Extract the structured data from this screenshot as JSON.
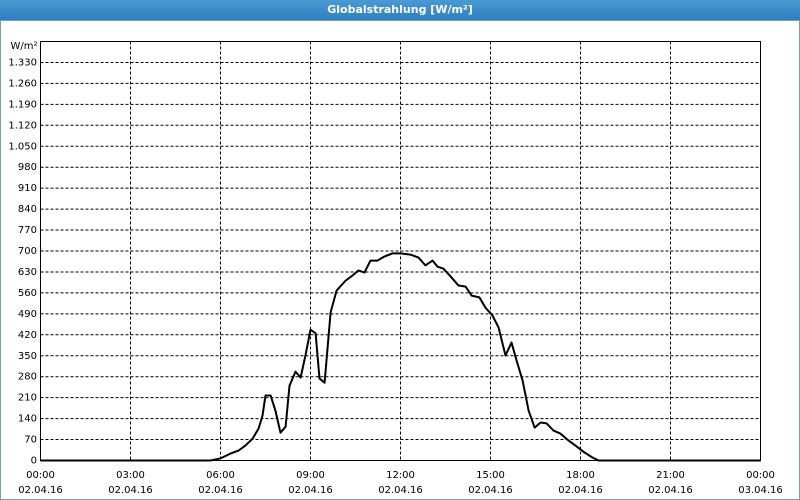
{
  "chart_data": {
    "type": "line",
    "title": "Globalstrahlung [W/m²]",
    "y_unit": "W/m²",
    "color": "#000000",
    "grid": true,
    "x": [
      0,
      5.67,
      6.0,
      6.33,
      6.6,
      6.83,
      7.07,
      7.27,
      7.4,
      7.5,
      7.67,
      7.83,
      8.0,
      8.17,
      8.3,
      8.5,
      8.67,
      8.83,
      9.0,
      9.17,
      9.3,
      9.47,
      9.67,
      9.87,
      10.17,
      10.4,
      10.6,
      10.8,
      11.0,
      11.23,
      11.47,
      11.73,
      12.0,
      12.33,
      12.6,
      12.83,
      13.07,
      13.23,
      13.43,
      13.67,
      13.93,
      14.17,
      14.37,
      14.63,
      14.83,
      15.07,
      15.27,
      15.5,
      15.7,
      15.87,
      16.07,
      16.27,
      16.47,
      16.67,
      16.87,
      17.1,
      17.33,
      17.6,
      17.87,
      18.13,
      18.4,
      18.6,
      24
    ],
    "values": [
      0,
      0,
      7,
      23,
      33,
      50,
      73,
      107,
      150,
      217,
      217,
      167,
      93,
      113,
      250,
      297,
      277,
      350,
      437,
      425,
      274,
      260,
      495,
      568,
      601,
      618,
      635,
      628,
      668,
      668,
      682,
      692,
      692,
      688,
      678,
      652,
      668,
      648,
      641,
      615,
      585,
      581,
      551,
      545,
      511,
      484,
      444,
      351,
      394,
      334,
      267,
      167,
      110,
      127,
      124,
      100,
      90,
      67,
      47,
      27,
      10,
      0,
      0
    ],
    "xlim": [
      0,
      24
    ],
    "xticks": [
      {
        "value": 0,
        "label": "00:00"
      },
      {
        "value": 3,
        "label": "03:00"
      },
      {
        "value": 6,
        "label": "06:00"
      },
      {
        "value": 9,
        "label": "09:00"
      },
      {
        "value": 12,
        "label": "12:00"
      },
      {
        "value": 15,
        "label": "15:00"
      },
      {
        "value": 18,
        "label": "18:00"
      },
      {
        "value": 21,
        "label": "21:00"
      },
      {
        "value": 24,
        "label": "00:00"
      }
    ],
    "xtick_dates": [
      "02.04.16",
      "02.04.16",
      "02.04.16",
      "02.04.16",
      "02.04.16",
      "02.04.16",
      "02.04.16",
      "02.04.16",
      "03.04.16"
    ],
    "ylim": [
      0,
      1400
    ],
    "yticks": [
      0,
      70,
      140,
      210,
      280,
      350,
      420,
      490,
      560,
      630,
      700,
      770,
      840,
      910,
      980,
      {
        "value": 1050,
        "label": "1.050"
      },
      {
        "value": 1120,
        "label": "1.120"
      },
      {
        "value": 1190,
        "label": "1.190"
      },
      {
        "value": 1260,
        "label": "1.260"
      },
      {
        "value": 1330,
        "label": "1.330"
      }
    ]
  }
}
